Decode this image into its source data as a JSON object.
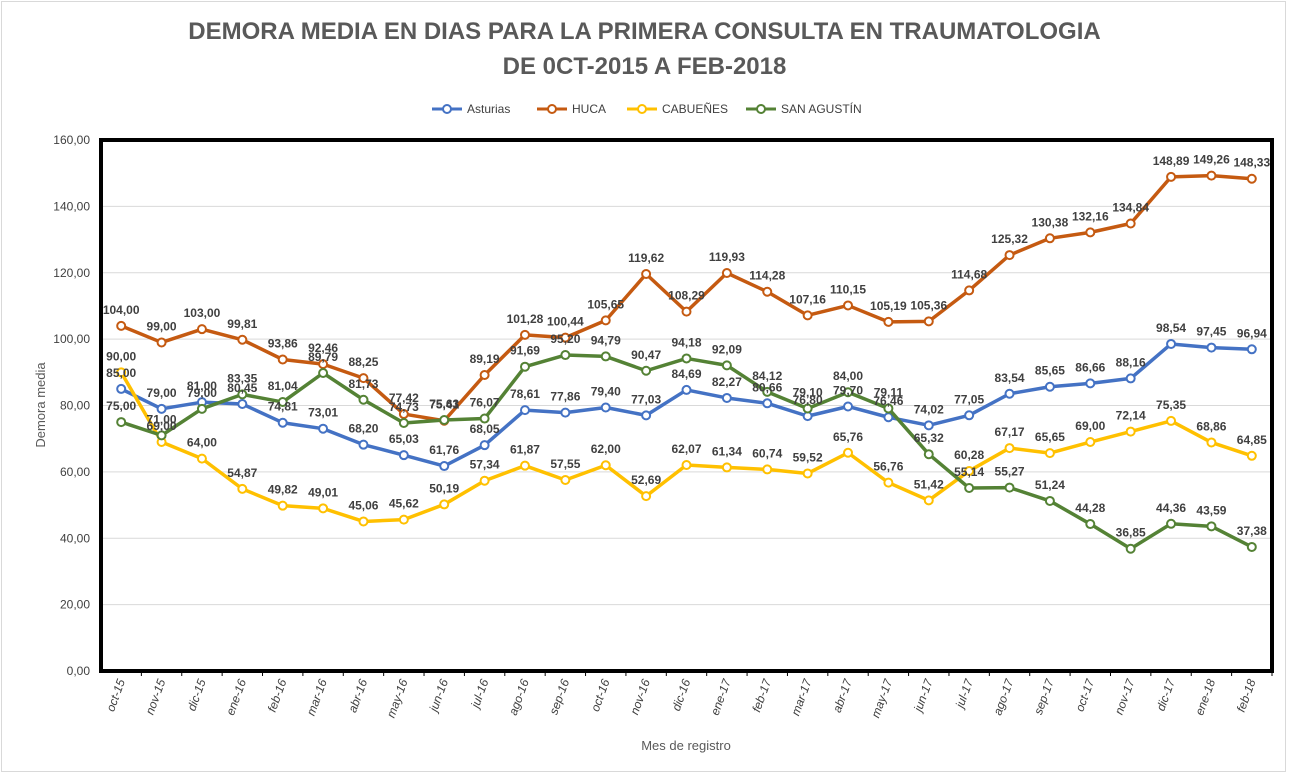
{
  "chart_data": {
    "type": "line",
    "title_line1": "DEMORA MEDIA EN DIAS PARA LA PRIMERA CONSULTA EN TRAUMATOLOGIA",
    "title_line2": "DE 0CT-2015  A FEB-2018",
    "xlabel": "Mes de registro",
    "ylabel": "Demora media",
    "ylim": [
      0,
      160
    ],
    "y_ticks": [
      "0,00",
      "20,00",
      "40,00",
      "60,00",
      "80,00",
      "100,00",
      "120,00",
      "140,00",
      "160,00"
    ],
    "grid": true,
    "legend_position": "top",
    "categories": [
      "oct-15",
      "nov-15",
      "dic-15",
      "ene-16",
      "feb-16",
      "mar-16",
      "abr-16",
      "may-16",
      "jun-16",
      "jul-16",
      "ago-16",
      "sep-16",
      "oct-16",
      "nov-16",
      "dic-16",
      "ene-17",
      "feb-17",
      "mar-17",
      "abr-17",
      "may-17",
      "jun-17",
      "jul-17",
      "ago-17",
      "sep-17",
      "oct-17",
      "nov-17",
      "dic-17",
      "ene-18",
      "feb-18"
    ],
    "series": [
      {
        "name": "Asturias",
        "color": "#4472C4",
        "values": [
          85.0,
          79.0,
          81.0,
          80.45,
          74.81,
          73.01,
          68.2,
          65.03,
          61.76,
          68.05,
          78.61,
          77.86,
          79.4,
          77.03,
          84.69,
          82.27,
          80.66,
          76.8,
          79.7,
          76.46,
          74.02,
          77.05,
          83.54,
          85.65,
          86.66,
          88.16,
          98.54,
          97.45,
          96.94
        ],
        "labels": [
          "85,00",
          "79,00",
          "81,00",
          "80,45",
          "74,81",
          "73,01",
          "68,20",
          "65,03",
          "61,76",
          "68,05",
          "78,61",
          "77,86",
          "79,40",
          "77,03",
          "84,69",
          "82,27",
          "80,66",
          "76,80",
          "79,70",
          "76,46",
          "74,02",
          "77,05",
          "83,54",
          "85,65",
          "86,66",
          "88,16",
          "98,54",
          "97,45",
          "96,94"
        ]
      },
      {
        "name": "HUCA",
        "color": "#C55A11",
        "values": [
          104.0,
          99.0,
          103.0,
          99.81,
          93.86,
          92.46,
          88.25,
          77.42,
          75.41,
          89.19,
          101.28,
          100.44,
          105.65,
          119.62,
          108.29,
          119.93,
          114.28,
          107.16,
          110.15,
          105.19,
          105.36,
          114.68,
          125.32,
          130.38,
          132.16,
          134.84,
          148.89,
          149.26,
          148.33
        ],
        "labels": [
          "104,00",
          "99,00",
          "103,00",
          "99,81",
          "93,86",
          "92,46",
          "88,25",
          "77,42",
          "75,41",
          "89,19",
          "101,28",
          "100,44",
          "105,65",
          "119,62",
          "108,29",
          "119,93",
          "114,28",
          "107,16",
          "110,15",
          "105,19",
          "105,36",
          "114,68",
          "125,32",
          "130,38",
          "132,16",
          "134,84",
          "148,89",
          "149,26",
          "148,33"
        ]
      },
      {
        "name": "CABUEÑES",
        "color": "#FFC000",
        "values": [
          90.0,
          69.0,
          64.0,
          54.87,
          49.82,
          49.01,
          45.06,
          45.62,
          50.19,
          57.34,
          61.87,
          57.55,
          62.0,
          52.69,
          62.07,
          61.34,
          60.74,
          59.52,
          65.76,
          56.76,
          51.42,
          60.28,
          67.17,
          65.65,
          69.0,
          72.14,
          75.35,
          68.86,
          64.85
        ],
        "labels": [
          "90,00",
          "69,00",
          "64,00",
          "54,87",
          "49,82",
          "49,01",
          "45,06",
          "45,62",
          "50,19",
          "57,34",
          "61,87",
          "57,55",
          "62,00",
          "52,69",
          "62,07",
          "61,34",
          "60,74",
          "59,52",
          "65,76",
          "56,76",
          "51,42",
          "60,28",
          "67,17",
          "65,65",
          "69,00",
          "72,14",
          "75,35",
          "68,86",
          "64,85"
        ]
      },
      {
        "name": "SAN AGUSTÍN",
        "color": "#548235",
        "values": [
          75.0,
          71.0,
          79.0,
          83.35,
          81.04,
          89.79,
          81.73,
          74.73,
          75.63,
          76.07,
          91.69,
          95.2,
          94.79,
          90.47,
          94.18,
          92.09,
          84.12,
          79.1,
          84.0,
          79.11,
          65.32,
          55.14,
          55.27,
          51.24,
          44.28,
          36.85,
          44.36,
          43.59,
          37.38
        ],
        "labels": [
          "75,00",
          "71,00",
          "79,00",
          "83,35",
          "81,04",
          "89,79",
          "81,73",
          "74,73",
          "75,63",
          "76,07",
          "91,69",
          "95,20",
          "94,79",
          "90,47",
          "94,18",
          "92,09",
          "84,12",
          "79,10",
          "84,00",
          "79,11",
          "65,32",
          "55,14",
          "55,27",
          "51,24",
          "44,28",
          "36,85",
          "44,36",
          "43,59",
          "37,38"
        ]
      }
    ]
  }
}
